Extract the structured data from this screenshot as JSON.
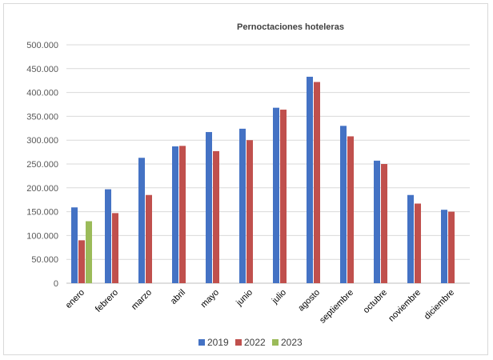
{
  "chart_data": {
    "type": "bar",
    "title": "Pernoctaciones hoteleras",
    "xlabel": "",
    "ylabel": "",
    "categories": [
      "enero",
      "febrero",
      "marzo",
      "abril",
      "mayo",
      "junio",
      "julio",
      "agosto",
      "septiembre",
      "octubre",
      "noviembre",
      "diciembre"
    ],
    "ylim": [
      0,
      500000
    ],
    "yticks": [
      0,
      50000,
      100000,
      150000,
      200000,
      250000,
      300000,
      350000,
      400000,
      450000,
      500000
    ],
    "ytick_labels": [
      "0",
      "50.000",
      "100.000",
      "150.000",
      "200.000",
      "250.000",
      "300.000",
      "350.000",
      "400.000",
      "450.000",
      "500.000"
    ],
    "grid": true,
    "legend_position": "bottom",
    "series": [
      {
        "name": "2019",
        "color": "#4472c4",
        "values": [
          159000,
          197000,
          263000,
          287000,
          317000,
          324000,
          368000,
          433000,
          330000,
          257000,
          185000,
          154000
        ]
      },
      {
        "name": "2022",
        "color": "#c0504d",
        "values": [
          90000,
          147000,
          185000,
          288000,
          277000,
          300000,
          364000,
          422000,
          308000,
          250000,
          167000,
          150000
        ]
      },
      {
        "name": "2023",
        "color": "#9bbb59",
        "values": [
          130000,
          null,
          null,
          null,
          null,
          null,
          null,
          null,
          null,
          null,
          null,
          null
        ]
      }
    ]
  }
}
